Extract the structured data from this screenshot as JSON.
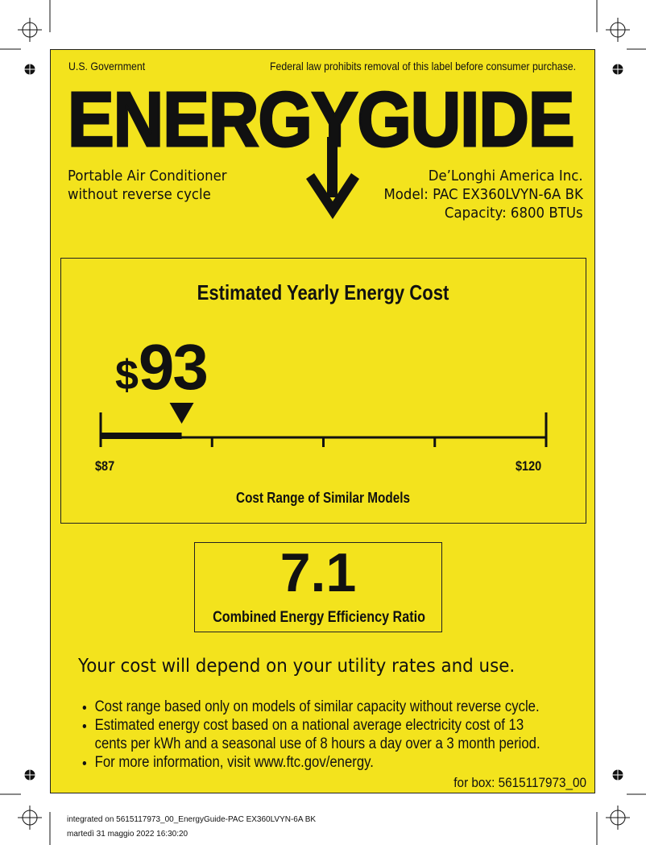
{
  "header": {
    "gov": "U.S. Government",
    "notice": "Federal law prohibits removal of this label before consumer purchase.",
    "title": "ENERGYGUIDE"
  },
  "product": {
    "type_line1": "Portable Air Conditioner",
    "type_line2": "without reverse cycle",
    "manufacturer": "De’Longhi America Inc.",
    "model": "Model: PAC EX360LVYN-6A BK",
    "capacity": "Capacity: 6800 BTUs"
  },
  "cost": {
    "heading": "Estimated Yearly Energy Cost",
    "currency": "$",
    "value": "93",
    "range_min": "$87",
    "range_max": "$120",
    "range_caption": "Cost Range of Similar Models",
    "scale": {
      "min": 87,
      "max": 120,
      "value": 93
    }
  },
  "efficiency": {
    "value": "7.1",
    "caption": "Combined Energy Efficiency Ratio"
  },
  "notes": {
    "headline": "Your cost will depend on your utility rates and use.",
    "bullets": [
      "Cost range based only on models of similar capacity without reverse cycle.",
      "Estimated energy cost based on a national average electricity cost of 13 cents per kWh and a seasonal use of 8 hours a day over a 3 month period.",
      "For more information, visit www.ftc.gov/energy."
    ],
    "box_code": "for box: 5615117973_00"
  },
  "footer": {
    "line1": "integrated on 5615117973_00_EnergyGuide-PAC EX360LVYN-6A BK",
    "line2": "martedì 31 maggio 2022 16:30:20"
  },
  "colors": {
    "label_yellow": "#f3e31d",
    "ink": "#111111"
  }
}
